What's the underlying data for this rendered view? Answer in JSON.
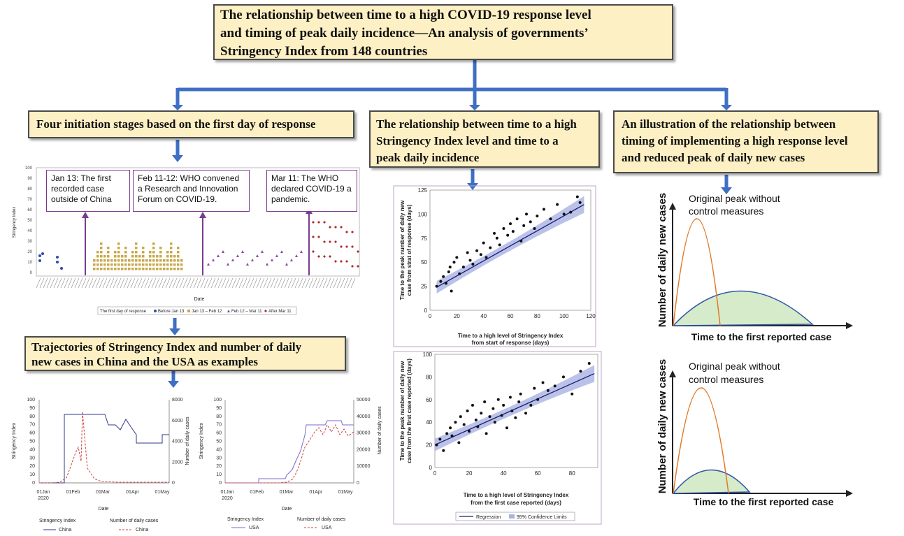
{
  "title": "The relationship between time to a high COVID-19 response level and timing of peak daily incidence—An analysis of governments’ Stringency Index from 148 countries",
  "title_lines": [
    "The relationship between time to a high COVID-19 response level",
    "and timing of peak daily incidence—An analysis of governments’",
    "Stringency Index from 148 countries"
  ],
  "stages": {
    "label": "Four initiation stages based on the first day of response",
    "events": [
      {
        "text": "Jan 13: The first recorded case outside of China"
      },
      {
        "text": "Feb 11-12: WHO convened a Research and Innovation Forum on COVID-19."
      },
      {
        "text": "Mar 11: The WHO declared COVID-19 a pandemic."
      }
    ],
    "ylabel": "Stringency Index",
    "xlabel": "Date",
    "yticks": [
      "100",
      "90",
      "80",
      "70",
      "60",
      "50",
      "40",
      "30",
      "20",
      "10",
      "0"
    ],
    "legend_title": "The first day of response",
    "legend_items": [
      "Before Jan 13",
      "Jan 13 – Feb 12",
      "Feb 12 – Mar 11",
      "After Mar 11"
    ]
  },
  "relationship": {
    "label": "The relationship between time to a high Stringency Index level and time to a peak daily incidence",
    "lines": [
      "The relationship between time to a high",
      "Stringency Index level and time to a",
      "peak daily incidence"
    ]
  },
  "illustration": {
    "label": "An illustration of the relationship between timing of implementing a high response level and reduced peak of daily new cases",
    "lines": [
      "An illustration of the relationship between",
      "timing of implementing a high response level",
      "and reduced peak of daily new cases"
    ],
    "ylabel": "Number of daily new cases",
    "xlabel": "Time to the first reported case",
    "note_lines": [
      "Original peak without",
      "control measures"
    ]
  },
  "trajectories": {
    "label": "Trajectories of Stringency Index and number of daily new cases in China and the USA as examples",
    "lines": [
      "Trajectories of Stringency Index and number of daily",
      "new cases in China and the USA as examples"
    ],
    "china": {
      "ylabel": "Stringency Index",
      "y2label": "Number of daily cases",
      "yticks": [
        "100",
        "90",
        "80",
        "70",
        "60",
        "50",
        "40",
        "30",
        "20",
        "10",
        "0"
      ],
      "y2ticks": [
        "8000",
        "6000",
        "4000",
        "2000",
        "0"
      ],
      "xticks": [
        "01Jan\n2020",
        "01Feb",
        "01Mar",
        "01Apr",
        "01May"
      ],
      "xlabel": "Date",
      "legend": [
        {
          "title": "Stringency Index",
          "item": "China"
        },
        {
          "title": "Number of daily cases",
          "item": "China"
        }
      ]
    },
    "usa": {
      "ylabel": "Stringency Index",
      "y2label": "Number of daily cases",
      "yticks": [
        "100",
        "90",
        "80",
        "70",
        "60",
        "50",
        "40",
        "30",
        "20",
        "10",
        "0"
      ],
      "y2ticks": [
        "50000",
        "40000",
        "30000",
        "20000",
        "10000",
        "0"
      ],
      "xticks": [
        "01Jan\n2020",
        "01Feb",
        "01Mar",
        "01Apr",
        "01May"
      ],
      "xlabel": "Date",
      "legend": [
        {
          "title": "Stringency Index",
          "item": "USA"
        },
        {
          "title": "Number of daily cases",
          "item": "USA"
        }
      ]
    }
  },
  "scatter1": {
    "ylabel_lines": [
      "Time to the peak number of daily new",
      "case from strat of response (days)"
    ],
    "xlabel_lines": [
      "Time to a high level of Stringency Index",
      "from start of response (days)"
    ],
    "xticks": [
      "0",
      "20",
      "40",
      "60",
      "80",
      "100",
      "120"
    ],
    "yticks": [
      "0",
      "25",
      "50",
      "75",
      "100",
      "125"
    ]
  },
  "scatter2": {
    "ylabel_lines": [
      "Time to the peak number of daily new",
      "case from the first case reported (days)"
    ],
    "xlabel_lines": [
      "Time to a high level of Stringency Index",
      "from the first case reported (days)"
    ],
    "xticks": [
      "0",
      "20",
      "40",
      "60",
      "80"
    ],
    "yticks": [
      "0",
      "20",
      "40",
      "60",
      "80",
      "100"
    ],
    "legend": [
      "Regression",
      "95% Confidence Limits"
    ]
  },
  "colors": {
    "arrow": "#3f6fc4",
    "box_fill": "#fdf0c4",
    "event_border": "#7a3b8e",
    "before": "#2e4fa0",
    "stage2": "#c9a84a",
    "stage3": "#8a4aa0",
    "stage4": "#b02a2a",
    "original_curve": "#e07a2a",
    "reduced_fill": "#d6ebc9",
    "reduced_line": "#2f58a8"
  },
  "chart_data": [
    {
      "type": "scatter",
      "x": [
        5,
        8,
        10,
        12,
        14,
        15,
        16,
        18,
        20,
        22,
        25,
        28,
        30,
        32,
        35,
        38,
        40,
        42,
        45,
        48,
        50,
        52,
        55,
        58,
        60,
        62,
        65,
        68,
        70,
        72,
        75,
        78,
        80,
        85,
        90,
        95,
        100,
        105,
        110,
        112
      ],
      "y": [
        25,
        30,
        35,
        28,
        40,
        45,
        20,
        50,
        55,
        38,
        45,
        60,
        52,
        48,
        62,
        58,
        70,
        55,
        65,
        80,
        75,
        68,
        85,
        78,
        90,
        82,
        95,
        72,
        88,
        100,
        92,
        85,
        98,
        105,
        95,
        110,
        100,
        102,
        118,
        112
      ],
      "regression": {
        "from": [
          5,
          24
        ],
        "to": [
          115,
          110
        ]
      },
      "xlabel": "Time to a high level of Stringency Index from start of response (days)",
      "ylabel": "Time to the peak number of daily new case from strat of response (days)",
      "xlim": [
        0,
        120
      ],
      "ylim": [
        0,
        125
      ]
    },
    {
      "type": "scatter",
      "x": [
        1,
        3,
        5,
        7,
        9,
        10,
        12,
        14,
        15,
        17,
        19,
        20,
        22,
        24,
        25,
        27,
        29,
        30,
        32,
        34,
        35,
        37,
        39,
        40,
        42,
        44,
        45,
        47,
        49,
        50,
        53,
        56,
        58,
        60,
        63,
        66,
        70,
        75,
        80,
        85,
        90
      ],
      "y": [
        20,
        25,
        15,
        30,
        35,
        28,
        40,
        22,
        45,
        38,
        50,
        32,
        55,
        42,
        36,
        48,
        58,
        30,
        45,
        52,
        40,
        60,
        46,
        55,
        35,
        62,
        50,
        44,
        58,
        65,
        48,
        55,
        70,
        60,
        75,
        68,
        72,
        80,
        65,
        85,
        92
      ],
      "regression": {
        "from": [
          0,
          20
        ],
        "to": [
          93,
          83
        ]
      },
      "xlabel": "Time to a high level of Stringency Index from the first case reported (days)",
      "ylabel": "Time to the peak number of daily new case from the first case reported (days)",
      "xlim": [
        0,
        95
      ],
      "ylim": [
        0,
        100
      ]
    }
  ]
}
